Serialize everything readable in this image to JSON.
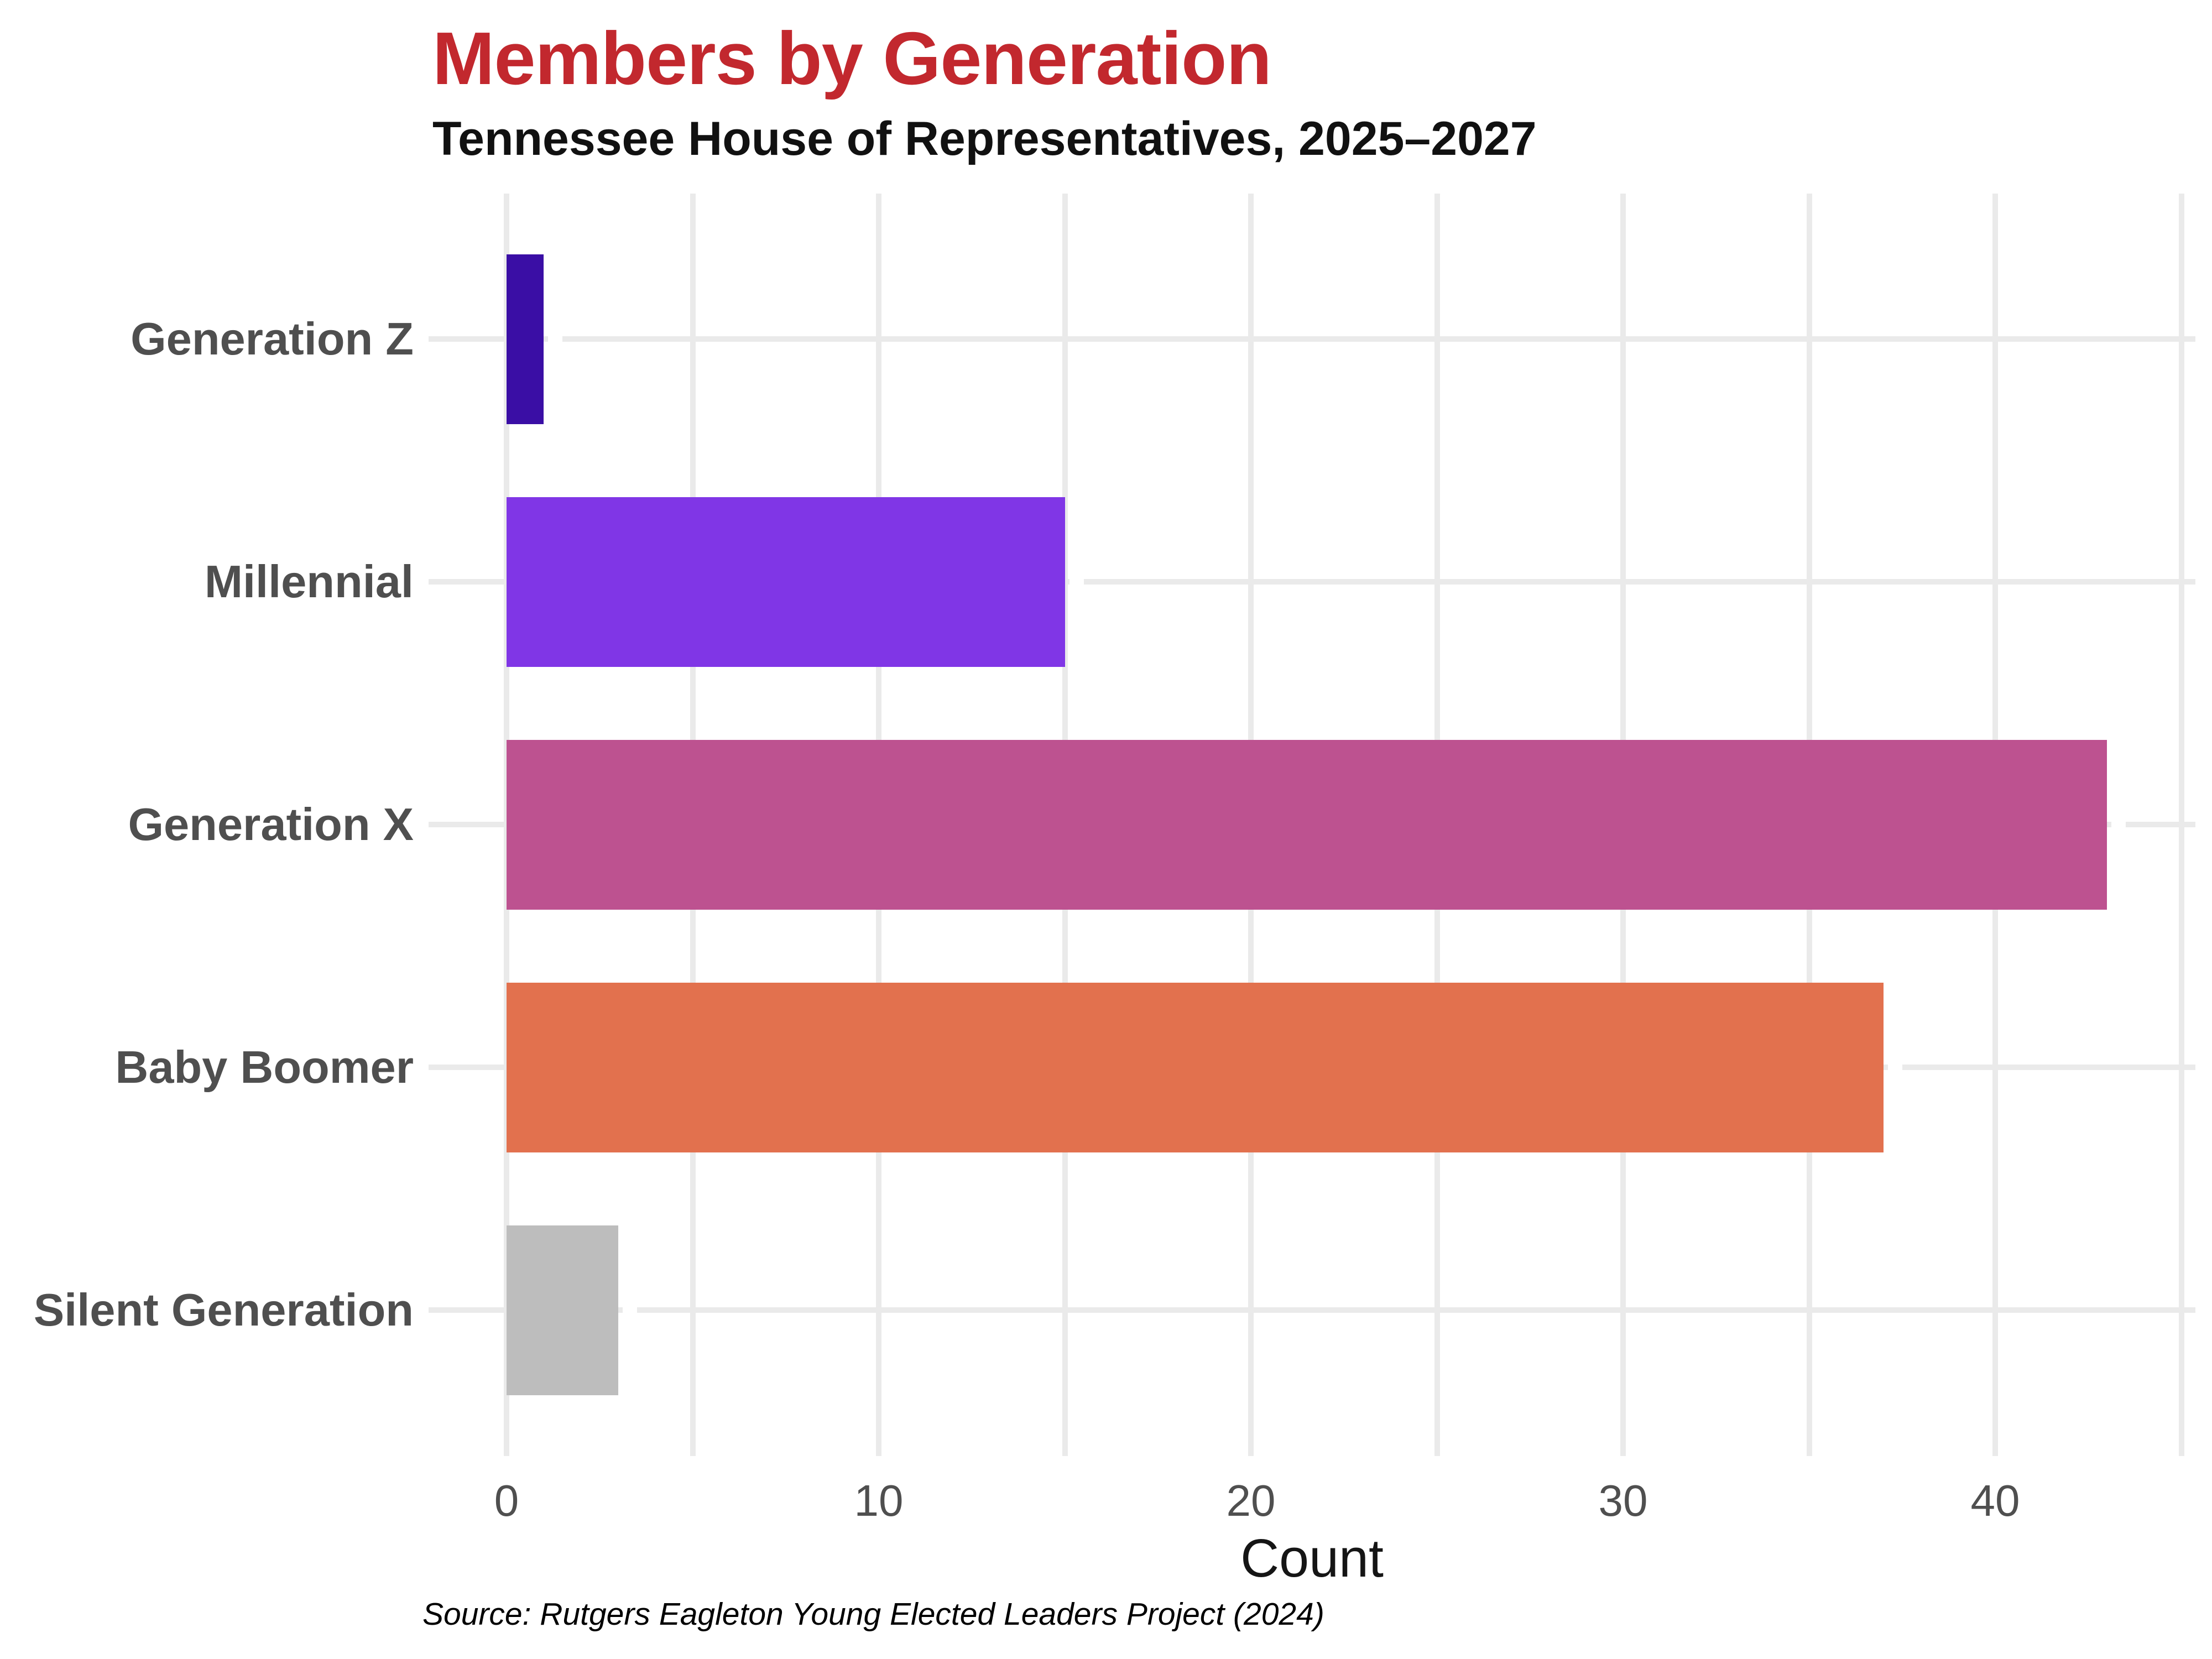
{
  "chart_data": {
    "type": "bar",
    "orientation": "horizontal",
    "title": "Members by Generation",
    "subtitle": "Tennessee House of Representatives, 2025–2027",
    "xlabel": "Count",
    "source": "Source: Rutgers Eagleton Young Elected Leaders Project (2024)",
    "categories": [
      "Generation Z",
      "Millennial",
      "Generation X",
      "Baby Boomer",
      "Silent Generation"
    ],
    "values": [
      1,
      15,
      43,
      37,
      3
    ],
    "bar_colors": [
      "#3a0ea5",
      "#8036e6",
      "#bd5290",
      "#e2714e",
      "#bdbdbd"
    ],
    "xlim": [
      0,
      45
    ],
    "xticks": [
      0,
      10,
      20,
      30,
      40
    ],
    "minor_xticks": [
      5,
      15,
      25,
      35,
      45
    ],
    "grid": true,
    "legend": false
  },
  "styles": {
    "title_color": "#c2282e",
    "axis_text_color": "#4f4f4f",
    "gridline_color": "#eaeaea",
    "background": "#ffffff"
  }
}
